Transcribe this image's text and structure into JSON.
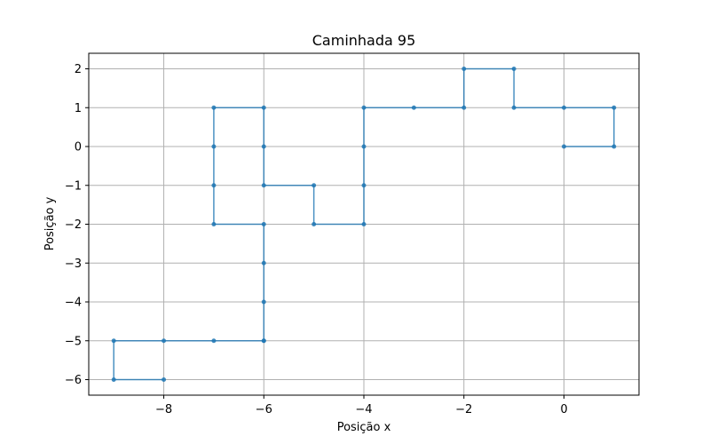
{
  "chart_data": {
    "type": "line",
    "title": "Caminhada 95",
    "xlabel": "Posição x",
    "ylabel": "Posição y",
    "xlim": [
      -9.5,
      1.5
    ],
    "ylim": [
      -6.4,
      2.4
    ],
    "xticks": [
      -8,
      -6,
      -4,
      -2,
      0
    ],
    "yticks": [
      -6,
      -5,
      -4,
      -3,
      -2,
      -1,
      0,
      1,
      2
    ],
    "grid": true,
    "colors": {
      "series": "#1f77b4",
      "grid": "#b0b0b0"
    },
    "series": [
      {
        "x": [
          0,
          1,
          1,
          0,
          -1,
          -1,
          -2,
          -2,
          -3,
          -4,
          -4,
          -4,
          -4,
          -5,
          -5,
          -6,
          -6,
          -6,
          -7,
          -7,
          -7,
          -7,
          -6,
          -6,
          -6,
          -6,
          -6,
          -7,
          -8,
          -9,
          -9,
          -8
        ],
        "y": [
          0,
          0,
          1,
          1,
          1,
          2,
          2,
          1,
          1,
          1,
          0,
          -1,
          -2,
          -2,
          -1,
          -1,
          0,
          1,
          1,
          0,
          -1,
          -2,
          -2,
          -3,
          -4,
          -5,
          -5,
          -5,
          -5,
          -5,
          -6,
          -6
        ]
      }
    ]
  }
}
